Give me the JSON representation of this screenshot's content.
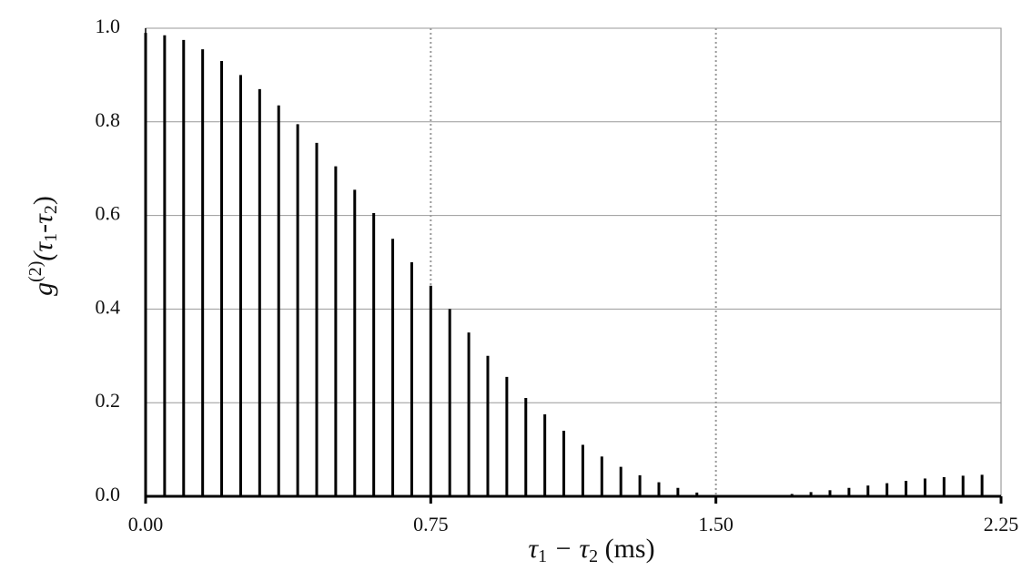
{
  "chart_data": {
    "type": "stem",
    "x": [
      0,
      0.05,
      0.1,
      0.15,
      0.2,
      0.25,
      0.3,
      0.35,
      0.4,
      0.45,
      0.5,
      0.55,
      0.6,
      0.65,
      0.7,
      0.75,
      0.8,
      0.85,
      0.9,
      0.95,
      1.0,
      1.05,
      1.1,
      1.15,
      1.2,
      1.25,
      1.3,
      1.35,
      1.4,
      1.45,
      1.5,
      1.55,
      1.6,
      1.65,
      1.7,
      1.75,
      1.8,
      1.85,
      1.9,
      1.95,
      2.0,
      2.05,
      2.1,
      2.15,
      2.2
    ],
    "values": [
      0.99,
      0.985,
      0.975,
      0.955,
      0.93,
      0.9,
      0.87,
      0.835,
      0.795,
      0.755,
      0.705,
      0.655,
      0.605,
      0.55,
      0.5,
      0.45,
      0.4,
      0.35,
      0.3,
      0.255,
      0.21,
      0.175,
      0.14,
      0.11,
      0.085,
      0.063,
      0.045,
      0.03,
      0.018,
      0.008,
      0.0,
      0.0,
      0.001,
      0.002,
      0.005,
      0.009,
      0.013,
      0.018,
      0.023,
      0.028,
      0.033,
      0.038,
      0.041,
      0.044,
      0.046
    ],
    "color": "#000000",
    "xlim": [
      0,
      2.25
    ],
    "xticks": [
      {
        "value": 0,
        "label": "0.00"
      },
      0.75,
      {
        "value": 1.5,
        "label": "1.50"
      },
      2.25
    ],
    "ylim": [
      0,
      1
    ],
    "yticks": [
      {
        "value": 0,
        "label": "0.0"
      },
      0.2,
      0.4,
      0.6,
      0.8,
      {
        "value": 1,
        "label": "1.0"
      }
    ],
    "ygrid": true,
    "xgrid": "dotted",
    "xlabel_parts": [
      "τ",
      "1",
      " − τ",
      "2",
      " (ms)"
    ],
    "ylabel_parts": [
      "g",
      "(2)",
      "(τ",
      "1",
      "-τ",
      "2",
      ")"
    ]
  }
}
